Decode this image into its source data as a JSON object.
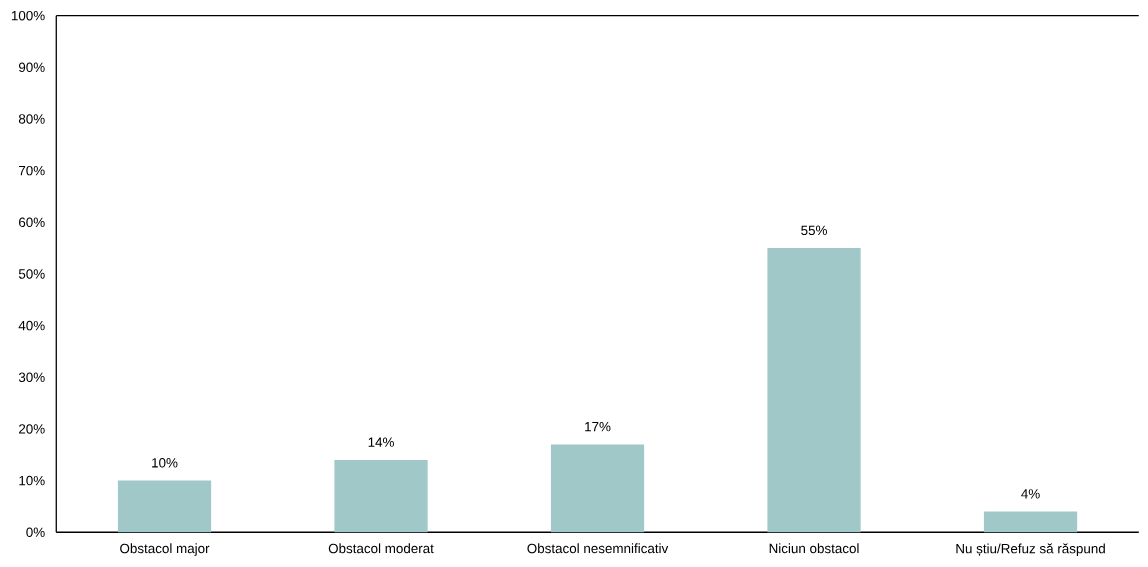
{
  "chart_data": {
    "type": "bar",
    "categories": [
      "Obstacol major",
      "Obstacol moderat",
      "Obstacol nesemnificativ",
      "Niciun obstacol",
      "Nu știu/Refuz să răspund"
    ],
    "values": [
      10,
      14,
      17,
      55,
      4
    ],
    "value_labels": [
      "10%",
      "14%",
      "17%",
      "55%",
      "4%"
    ],
    "color": "#a0c8c8",
    "ylim": [
      0,
      100
    ],
    "yticks": [
      {
        "value": 0,
        "label": "0%"
      },
      {
        "value": 10,
        "label": "10%"
      },
      {
        "value": 20,
        "label": "20%"
      },
      {
        "value": 30,
        "label": "30%"
      },
      {
        "value": 40,
        "label": "40%"
      },
      {
        "value": 50,
        "label": "50%"
      },
      {
        "value": 60,
        "label": "60%"
      },
      {
        "value": 70,
        "label": "70%"
      },
      {
        "value": 80,
        "label": "80%"
      },
      {
        "value": 90,
        "label": "90%"
      },
      {
        "value": 100,
        "label": "100%"
      }
    ],
    "grid": false
  }
}
